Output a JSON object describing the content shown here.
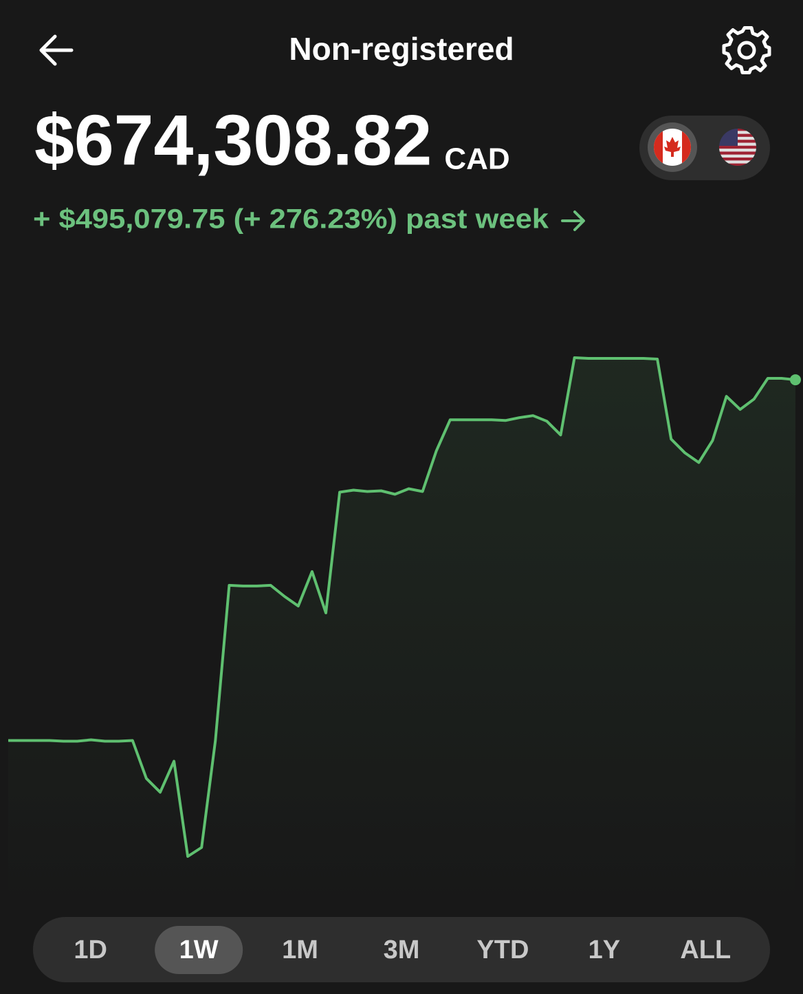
{
  "header": {
    "title": "Non-registered"
  },
  "balance": {
    "amount": "$674,308.82",
    "currency": "CAD"
  },
  "change": {
    "text": "+ $495,079.75 (+ 276.23%) past week"
  },
  "chart_data": {
    "type": "line",
    "color": "#5fc070",
    "values": [
      179229.07,
      179229,
      179229,
      179229,
      178282,
      178282,
      180176,
      178282,
      178282,
      179229,
      127166,
      108234,
      150831,
      20200,
      32507,
      179229,
      392214,
      391267,
      391267,
      392214,
      377068,
      363815,
      411146,
      354349,
      520005,
      522845,
      520952,
      521898,
      517165,
      524738,
      520952,
      576801,
      619398,
      619398,
      619398,
      619398,
      618451,
      622238,
      625077,
      617505,
      598573,
      704592,
      703646,
      703646,
      703646,
      703646,
      703646,
      702699,
      592893,
      573961,
      560708,
      591000,
      651582,
      633596,
      647795,
      676246,
      676246,
      674308.82
    ]
  },
  "ranges": {
    "options": [
      "1D",
      "1W",
      "1M",
      "3M",
      "YTD",
      "1Y",
      "ALL"
    ],
    "selected": "1W"
  }
}
